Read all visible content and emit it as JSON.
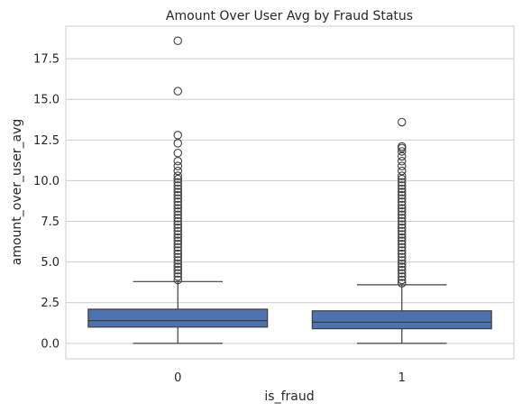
{
  "chart_data": {
    "type": "box",
    "title": "Amount Over User Avg by Fraud Status",
    "xlabel": "is_fraud",
    "ylabel": "amount_over_user_avg",
    "categories": [
      "0",
      "1"
    ],
    "ylim": [
      -0.95,
      19.5
    ],
    "yticks": [
      "0.0",
      "2.5",
      "5.0",
      "7.5",
      "10.0",
      "12.5",
      "15.0",
      "17.5"
    ],
    "grid": true,
    "box_color": "#4c72b0",
    "boxes": [
      {
        "category": "0",
        "whisker_low": 0.0,
        "q1": 1.0,
        "median": 1.4,
        "q3": 2.1,
        "whisker_high": 3.8,
        "outliers": [
          3.9,
          4.1,
          4.3,
          4.5,
          4.7,
          4.9,
          5.1,
          5.3,
          5.5,
          5.7,
          5.9,
          6.1,
          6.3,
          6.5,
          6.7,
          6.9,
          7.1,
          7.3,
          7.5,
          7.7,
          7.9,
          8.1,
          8.3,
          8.5,
          8.7,
          8.9,
          9.1,
          9.3,
          9.5,
          9.7,
          9.9,
          10.1,
          10.3,
          10.6,
          10.9,
          11.2,
          11.7,
          12.3,
          12.8,
          15.5,
          18.6
        ]
      },
      {
        "category": "1",
        "whisker_low": 0.0,
        "q1": 0.9,
        "median": 1.3,
        "q3": 2.0,
        "whisker_high": 3.6,
        "outliers": [
          3.7,
          3.9,
          4.1,
          4.3,
          4.5,
          4.7,
          4.9,
          5.1,
          5.3,
          5.5,
          5.7,
          5.9,
          6.1,
          6.3,
          6.5,
          6.7,
          6.9,
          7.1,
          7.3,
          7.5,
          7.7,
          7.9,
          8.1,
          8.3,
          8.5,
          8.7,
          8.9,
          9.1,
          9.3,
          9.5,
          9.7,
          9.9,
          10.1,
          10.3,
          10.6,
          10.9,
          11.2,
          11.5,
          11.8,
          12.0,
          12.1,
          13.6
        ]
      }
    ]
  }
}
